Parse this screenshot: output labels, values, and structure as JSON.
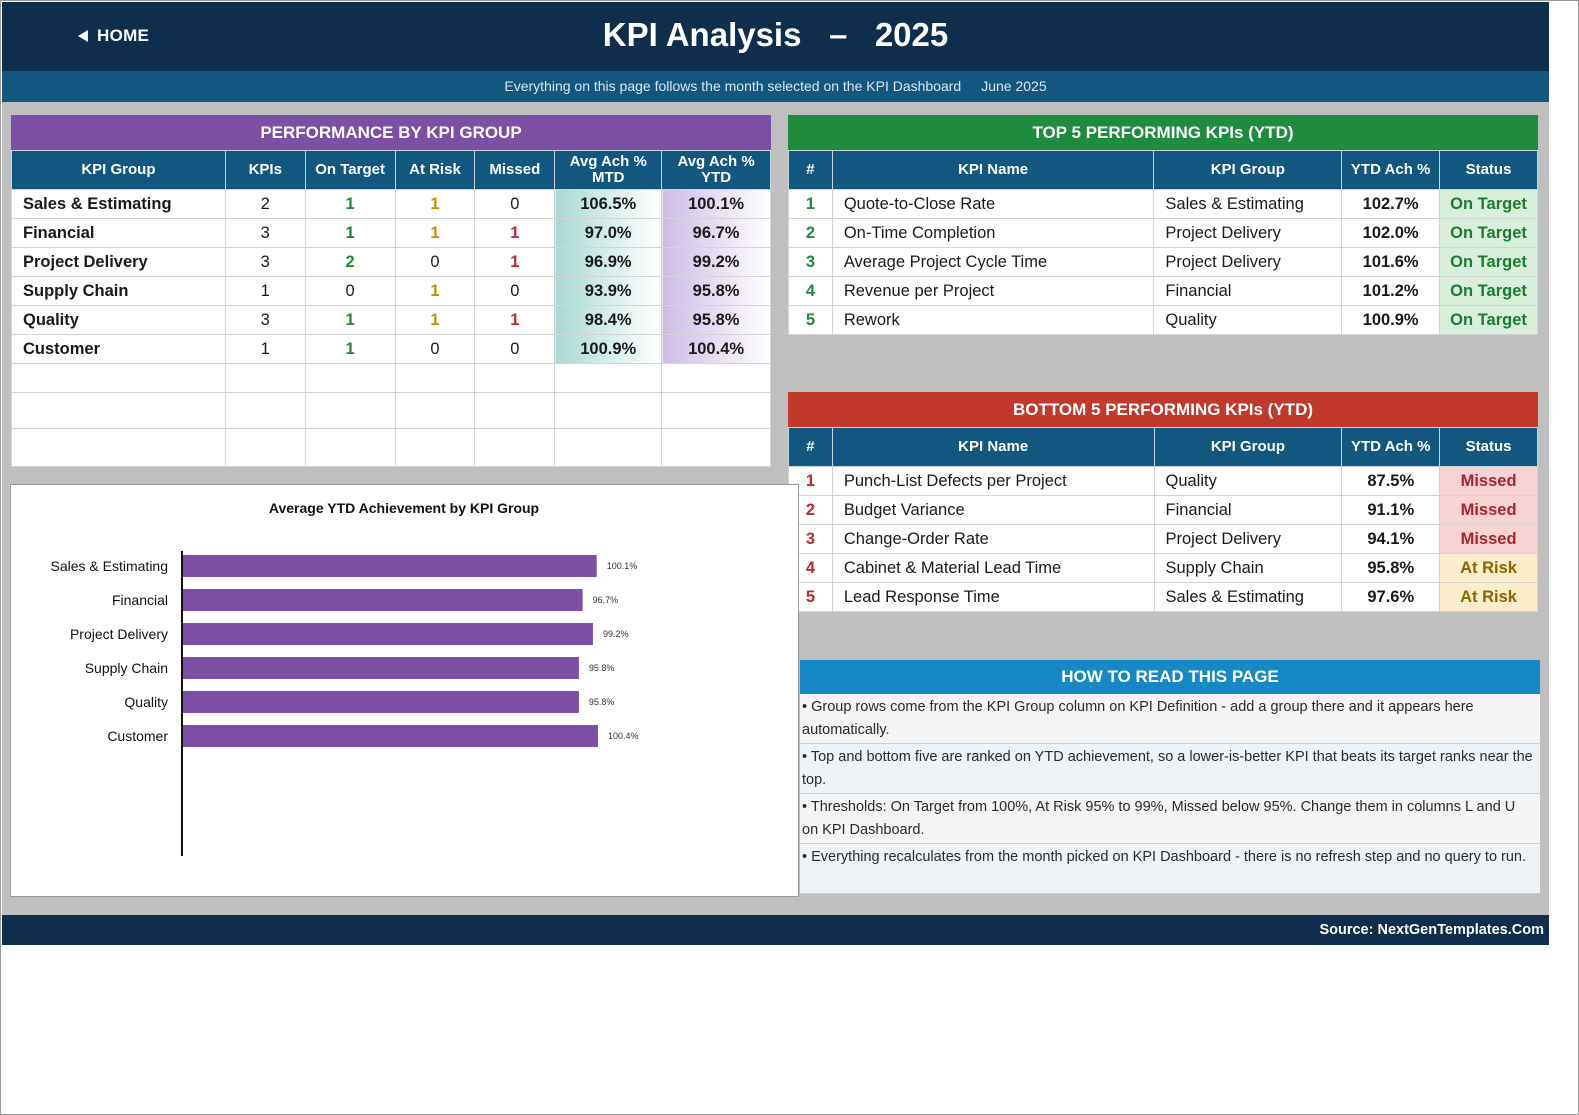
{
  "header": {
    "home_label": "HOME",
    "title": "KPI Analysis   –   2025"
  },
  "subheader": {
    "note": "Everything on this page follows the month selected on the KPI Dashboard",
    "month": "June 2025"
  },
  "group_panel": {
    "title": "PERFORMANCE BY KPI GROUP",
    "columns": [
      "KPI Group",
      "KPIs",
      "On Target",
      "At Risk",
      "Missed",
      "Avg Ach % MTD",
      "Avg Ach % YTD"
    ],
    "rows": [
      {
        "group": "Sales & Estimating",
        "kpis": "2",
        "on_target": "1",
        "at_risk": "1",
        "missed": "0",
        "mtd": "106.5%",
        "ytd": "100.1%"
      },
      {
        "group": "Financial",
        "kpis": "3",
        "on_target": "1",
        "at_risk": "1",
        "missed": "1",
        "mtd": "97.0%",
        "ytd": "96.7%"
      },
      {
        "group": "Project Delivery",
        "kpis": "3",
        "on_target": "2",
        "at_risk": "0",
        "missed": "1",
        "mtd": "96.9%",
        "ytd": "99.2%"
      },
      {
        "group": "Supply Chain",
        "kpis": "1",
        "on_target": "0",
        "at_risk": "1",
        "missed": "0",
        "mtd": "93.9%",
        "ytd": "95.8%"
      },
      {
        "group": "Quality",
        "kpis": "3",
        "on_target": "1",
        "at_risk": "1",
        "missed": "1",
        "mtd": "98.4%",
        "ytd": "95.8%"
      },
      {
        "group": "Customer",
        "kpis": "1",
        "on_target": "1",
        "at_risk": "0",
        "missed": "0",
        "mtd": "100.9%",
        "ytd": "100.4%"
      }
    ]
  },
  "top5": {
    "title": "TOP 5 PERFORMING KPIs  (YTD)",
    "columns": [
      "#",
      "KPI Name",
      "KPI Group",
      "YTD Ach %",
      "Status"
    ],
    "rows": [
      {
        "rank": "1",
        "name": "Quote-to-Close Rate",
        "group": "Sales & Estimating",
        "ytd": "102.7%",
        "status": "On Target"
      },
      {
        "rank": "2",
        "name": "On-Time Completion",
        "group": "Project Delivery",
        "ytd": "102.0%",
        "status": "On Target"
      },
      {
        "rank": "3",
        "name": "Average Project Cycle Time",
        "group": "Project Delivery",
        "ytd": "101.6%",
        "status": "On Target"
      },
      {
        "rank": "4",
        "name": "Revenue per Project",
        "group": "Financial",
        "ytd": "101.2%",
        "status": "On Target"
      },
      {
        "rank": "5",
        "name": "Rework",
        "group": "Quality",
        "ytd": "100.9%",
        "status": "On Target"
      }
    ]
  },
  "bottom5": {
    "title": "BOTTOM 5 PERFORMING KPIs  (YTD)",
    "columns": [
      "#",
      "KPI Name",
      "KPI Group",
      "YTD Ach %",
      "Status"
    ],
    "rows": [
      {
        "rank": "1",
        "name": "Punch-List Defects per Project",
        "group": "Quality",
        "ytd": "87.5%",
        "status": "Missed"
      },
      {
        "rank": "2",
        "name": "Budget Variance",
        "group": "Financial",
        "ytd": "91.1%",
        "status": "Missed"
      },
      {
        "rank": "3",
        "name": "Change-Order Rate",
        "group": "Project Delivery",
        "ytd": "94.1%",
        "status": "Missed"
      },
      {
        "rank": "4",
        "name": "Cabinet & Material Lead Time",
        "group": "Supply Chain",
        "ytd": "95.8%",
        "status": "At Risk"
      },
      {
        "rank": "5",
        "name": "Lead Response Time",
        "group": "Sales & Estimating",
        "ytd": "97.6%",
        "status": "At Risk"
      }
    ]
  },
  "chart_data": {
    "type": "bar",
    "orientation": "horizontal",
    "title": "Average YTD Achievement by KPI Group",
    "categories": [
      "Sales & Estimating",
      "Financial",
      "Project Delivery",
      "Supply Chain",
      "Quality",
      "Customer"
    ],
    "values": [
      100.1,
      96.7,
      99.2,
      95.8,
      95.8,
      100.4
    ],
    "data_labels": [
      "100.1%",
      "96.7%",
      "99.2%",
      "95.8%",
      "95.8%",
      "100.4%"
    ],
    "xlim": [
      0,
      140
    ],
    "grid": false,
    "bar_color": "#7b4fa3"
  },
  "howto": {
    "title": "HOW TO READ THIS PAGE",
    "items": [
      "•  Group rows come from the KPI Group column on KPI Definition - add a group there and it appears here automatically.",
      "•  Top and bottom five are ranked on YTD achievement, so a lower-is-better KPI that beats its target ranks near the top.",
      "•  Thresholds: On Target from 100%, At Risk 95% to 99%, Missed below 95%. Change them in columns L and U on KPI Dashboard.",
      "•  Everything recalculates from the month picked on KPI Dashboard - there is no refresh step and no query to run."
    ]
  },
  "footer": {
    "source": "Source: NextGenTemplates.Com"
  },
  "colors": {
    "navy": "#0f2e4d",
    "blue": "#11577f",
    "purple": "#7b4fa3",
    "green_header": "#1f8b3c",
    "red_header": "#c0392b",
    "howto_header": "#1489c6"
  }
}
